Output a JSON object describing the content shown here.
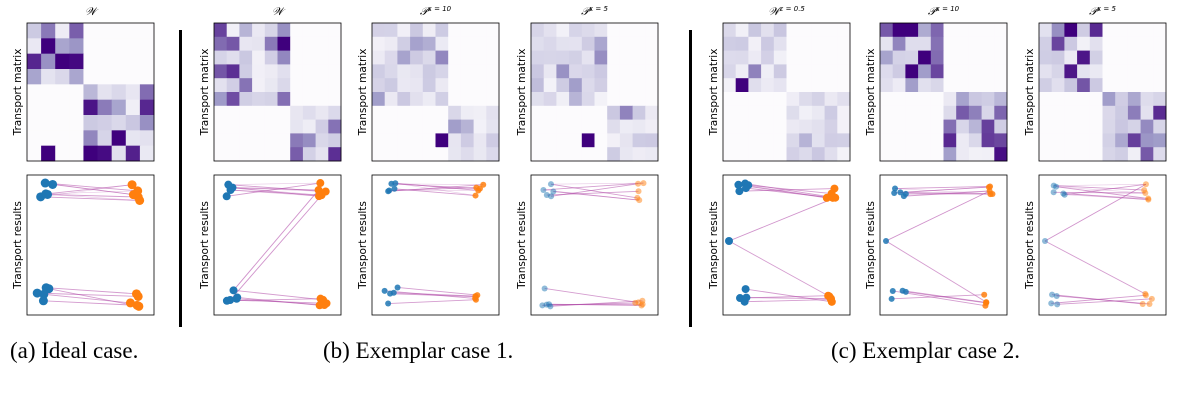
{
  "figure": {
    "row_labels": {
      "matrix": "Transport matrix",
      "results": "Transport results"
    },
    "panels": [
      {
        "id": "a",
        "title": "𝒲",
        "sup": "",
        "caption": "(a)  Ideal case."
      },
      {
        "id": "b1",
        "title": "𝒲",
        "sup": "",
        "caption": ""
      },
      {
        "id": "b2",
        "title": "𝒫",
        "sup": "κ = 10",
        "caption": ""
      },
      {
        "id": "b3",
        "title": "𝒫",
        "sup": "κ = 5",
        "caption": ""
      },
      {
        "id": "c1",
        "title": "𝒲",
        "sup": "ε = 0.5",
        "caption": ""
      },
      {
        "id": "c2",
        "title": "𝒫",
        "sup": "κ = 10",
        "caption": ""
      },
      {
        "id": "c3",
        "title": "𝒫",
        "sup": "κ = 5",
        "caption": ""
      }
    ],
    "captions": {
      "a": "(a)  Ideal case.",
      "b": "(b)  Exemplar case 1.",
      "c": "(c)  Exemplar case 2."
    },
    "colors": {
      "source": "#1f77b4",
      "target": "#ff7f0e",
      "link": "#b04aa8",
      "cmap_hi": "#3f007d",
      "cmap_lo": "#fcfbfd"
    }
  }
}
